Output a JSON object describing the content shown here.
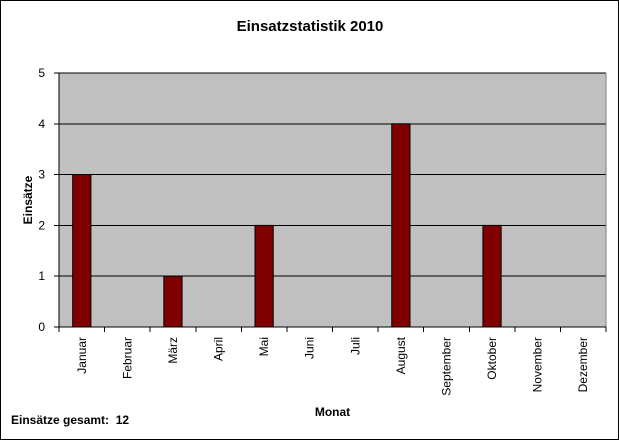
{
  "colors": {
    "plot_background": "#c0c0c0",
    "bar_fill": "#800000",
    "bar_stroke": "#000000",
    "grid_line": "#000000",
    "text": "#000000"
  },
  "chart_data": {
    "type": "bar",
    "title": "Einsatzstatistik 2010",
    "xlabel": "Monat",
    "ylabel": "Einsätze",
    "ylim": [
      0,
      5
    ],
    "yticks": [
      0,
      1,
      2,
      3,
      4,
      5
    ],
    "grid": true,
    "legend": "none",
    "categories": [
      "Januar",
      "Februar",
      "März",
      "April",
      "Mai",
      "Juni",
      "Juli",
      "August",
      "September",
      "Oktober",
      "November",
      "Dezember"
    ],
    "values": [
      3,
      0,
      1,
      0,
      2,
      0,
      0,
      4,
      0,
      2,
      0,
      0
    ]
  },
  "footer": {
    "label": "Einsätze gesamt:",
    "total": "12"
  }
}
